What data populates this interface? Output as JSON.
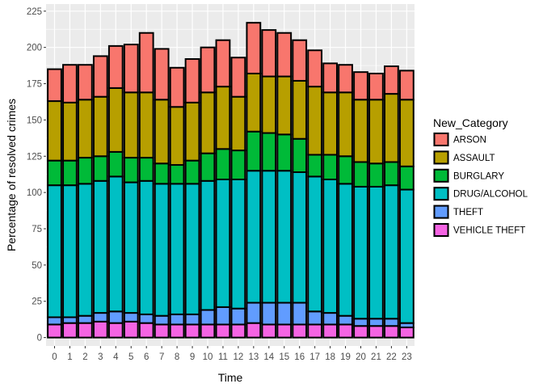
{
  "chart_data": {
    "type": "bar",
    "stacked": true,
    "title": "",
    "xlabel": "Time",
    "ylabel": "Percentage of resolved crimes",
    "categories": [
      "0",
      "1",
      "2",
      "3",
      "4",
      "5",
      "6",
      "7",
      "8",
      "9",
      "10",
      "11",
      "12",
      "13",
      "14",
      "15",
      "16",
      "17",
      "18",
      "19",
      "20",
      "21",
      "22",
      "23"
    ],
    "ylim": [
      0,
      225
    ],
    "yticks": [
      0,
      25,
      50,
      75,
      100,
      125,
      150,
      175,
      200,
      225
    ],
    "grid": true,
    "legend": {
      "title": "New_Category",
      "position": "right"
    },
    "series": [
      {
        "name": "VEHICLE THEFT",
        "color": "#F564E3",
        "values": [
          9,
          10,
          10,
          11,
          10,
          11,
          10,
          9,
          9,
          9,
          9,
          9,
          9,
          10,
          9,
          9,
          9,
          9,
          9,
          9,
          8,
          8,
          8,
          7
        ]
      },
      {
        "name": "THEFT",
        "color": "#619CFF",
        "values": [
          5,
          4,
          5,
          6,
          8,
          6,
          6,
          6,
          7,
          7,
          10,
          12,
          11,
          14,
          15,
          15,
          15,
          9,
          8,
          6,
          5,
          5,
          5,
          3
        ]
      },
      {
        "name": "DRUG/ALCOHOL",
        "color": "#00BFC4",
        "values": [
          91,
          91,
          91,
          91,
          93,
          90,
          92,
          91,
          90,
          90,
          89,
          88,
          89,
          91,
          91,
          91,
          90,
          93,
          92,
          91,
          91,
          91,
          92,
          92
        ]
      },
      {
        "name": "BURGLARY",
        "color": "#00BA38",
        "values": [
          17,
          17,
          18,
          17,
          17,
          17,
          16,
          14,
          13,
          16,
          19,
          21,
          20,
          27,
          26,
          25,
          23,
          15,
          17,
          19,
          17,
          16,
          16,
          16
        ]
      },
      {
        "name": "ASSAULT",
        "color": "#B79F00",
        "values": [
          41,
          40,
          40,
          41,
          44,
          45,
          45,
          44,
          40,
          40,
          42,
          43,
          37,
          40,
          39,
          40,
          40,
          47,
          43,
          44,
          43,
          44,
          47,
          46
        ]
      },
      {
        "name": "ARSON",
        "color": "#F8766D",
        "values": [
          22,
          26,
          24,
          28,
          29,
          33,
          41,
          35,
          27,
          30,
          31,
          32,
          27,
          35,
          32,
          30,
          28,
          25,
          20,
          19,
          19,
          18,
          19,
          20
        ]
      }
    ]
  }
}
